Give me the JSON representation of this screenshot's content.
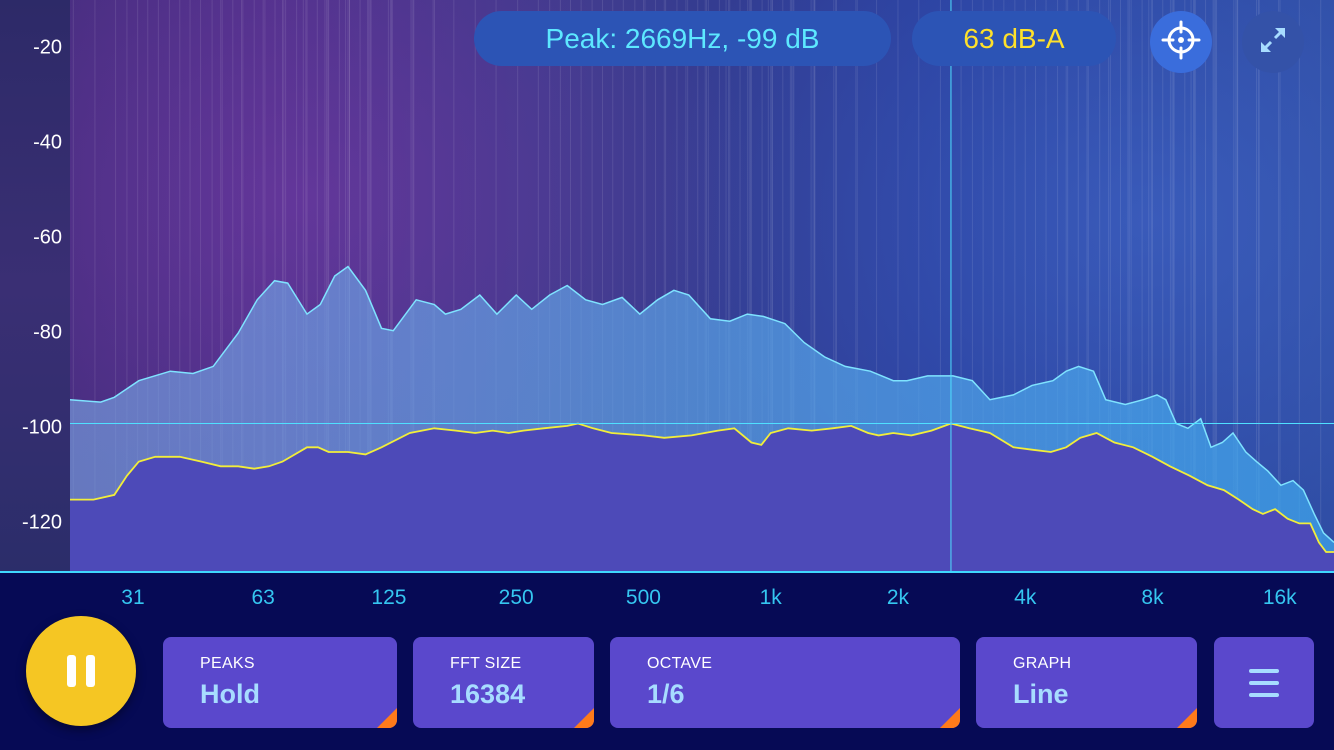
{
  "header": {
    "peak_readout": "Peak: 2669Hz, -99 dB",
    "level_readout": "63 dB-A"
  },
  "icons": {
    "target": "crosshair-target-icon",
    "expand": "expand-arrows-icon",
    "pause": "pause-icon",
    "menu": "hamburger-menu-icon"
  },
  "controls": {
    "peaks": {
      "label": "PEAKS",
      "value": "Hold"
    },
    "fft_size": {
      "label": "FFT SIZE",
      "value": "16384"
    },
    "octave": {
      "label": "OCTAVE",
      "value": "1/6"
    },
    "graph": {
      "label": "GRAPH",
      "value": "Line"
    }
  },
  "colors": {
    "peak_text": "#5de8ff",
    "level_text": "#ffe12a",
    "pause_button": "#f5c623",
    "card_bg": "#5a48cc",
    "card_corner": "#ff7a1a",
    "peak_hold_line": "#7fe3ff",
    "current_line": "#f2ee3a",
    "axis_tick_x": "#35c6f0"
  },
  "chart_data": {
    "type": "area",
    "x_scale": "log",
    "xlim": [
      22,
      21500
    ],
    "ylim": [
      -130,
      -10
    ],
    "y_ticks": [
      -20,
      -40,
      -60,
      -80,
      -100,
      -120
    ],
    "x_ticks": [
      {
        "hz": 31,
        "label": "31"
      },
      {
        "hz": 63,
        "label": "63"
      },
      {
        "hz": 125,
        "label": "125"
      },
      {
        "hz": 250,
        "label": "250"
      },
      {
        "hz": 500,
        "label": "500"
      },
      {
        "hz": 1000,
        "label": "1k"
      },
      {
        "hz": 2000,
        "label": "2k"
      },
      {
        "hz": 4000,
        "label": "4k"
      },
      {
        "hz": 8000,
        "label": "8k"
      },
      {
        "hz": 16000,
        "label": "16k"
      }
    ],
    "cursor": {
      "freq_hz": 2669,
      "db": -99
    },
    "series": [
      {
        "role": "peak-hold",
        "points": [
          [
            22,
            -94
          ],
          [
            26,
            -94.5
          ],
          [
            28,
            -93.5
          ],
          [
            32,
            -90
          ],
          [
            38,
            -88
          ],
          [
            43,
            -88.5
          ],
          [
            48,
            -87
          ],
          [
            55,
            -80
          ],
          [
            61,
            -73
          ],
          [
            67,
            -69
          ],
          [
            72,
            -69.5
          ],
          [
            80,
            -76
          ],
          [
            86,
            -74
          ],
          [
            93,
            -68
          ],
          [
            100,
            -66
          ],
          [
            110,
            -71
          ],
          [
            120,
            -79
          ],
          [
            128,
            -79.5
          ],
          [
            145,
            -73
          ],
          [
            160,
            -74
          ],
          [
            170,
            -76
          ],
          [
            185,
            -75
          ],
          [
            205,
            -72
          ],
          [
            225,
            -76
          ],
          [
            250,
            -72
          ],
          [
            272,
            -75
          ],
          [
            300,
            -72
          ],
          [
            330,
            -70
          ],
          [
            365,
            -73
          ],
          [
            400,
            -74
          ],
          [
            445,
            -72.5
          ],
          [
            490,
            -76
          ],
          [
            540,
            -73
          ],
          [
            590,
            -71
          ],
          [
            640,
            -72
          ],
          [
            720,
            -77
          ],
          [
            800,
            -77.5
          ],
          [
            880,
            -76
          ],
          [
            960,
            -76.5
          ],
          [
            1080,
            -78
          ],
          [
            1200,
            -82
          ],
          [
            1340,
            -85
          ],
          [
            1500,
            -87
          ],
          [
            1720,
            -88
          ],
          [
            1950,
            -90
          ],
          [
            2100,
            -90
          ],
          [
            2350,
            -89
          ],
          [
            2700,
            -89
          ],
          [
            3000,
            -90
          ],
          [
            3300,
            -94
          ],
          [
            3750,
            -93
          ],
          [
            4150,
            -91
          ],
          [
            4650,
            -90
          ],
          [
            5000,
            -88
          ],
          [
            5350,
            -87
          ],
          [
            5800,
            -88
          ],
          [
            6200,
            -94
          ],
          [
            6900,
            -95
          ],
          [
            7600,
            -94
          ],
          [
            8200,
            -93
          ],
          [
            8600,
            -94
          ],
          [
            9100,
            -99
          ],
          [
            9700,
            -100
          ],
          [
            10400,
            -98
          ],
          [
            11000,
            -104
          ],
          [
            11700,
            -103
          ],
          [
            12400,
            -101
          ],
          [
            13300,
            -105
          ],
          [
            14100,
            -107
          ],
          [
            15000,
            -109
          ],
          [
            16100,
            -112
          ],
          [
            17200,
            -111
          ],
          [
            18200,
            -113
          ],
          [
            19300,
            -118
          ],
          [
            20300,
            -122
          ],
          [
            21500,
            -124
          ]
        ]
      },
      {
        "role": "current",
        "points": [
          [
            22,
            -115
          ],
          [
            25,
            -115
          ],
          [
            28,
            -114
          ],
          [
            30,
            -110
          ],
          [
            32,
            -107
          ],
          [
            35,
            -106
          ],
          [
            40,
            -106
          ],
          [
            45,
            -107
          ],
          [
            50,
            -108
          ],
          [
            55,
            -108
          ],
          [
            60,
            -108.5
          ],
          [
            65,
            -108
          ],
          [
            70,
            -107
          ],
          [
            80,
            -104
          ],
          [
            85,
            -104
          ],
          [
            90,
            -105
          ],
          [
            100,
            -105
          ],
          [
            110,
            -105.5
          ],
          [
            120,
            -104
          ],
          [
            140,
            -101
          ],
          [
            160,
            -100
          ],
          [
            180,
            -100.5
          ],
          [
            200,
            -101
          ],
          [
            220,
            -100.5
          ],
          [
            240,
            -101
          ],
          [
            260,
            -100.5
          ],
          [
            290,
            -100
          ],
          [
            330,
            -99.5
          ],
          [
            350,
            -99
          ],
          [
            380,
            -100
          ],
          [
            420,
            -101
          ],
          [
            500,
            -101.5
          ],
          [
            560,
            -102
          ],
          [
            650,
            -101.5
          ],
          [
            750,
            -100.5
          ],
          [
            820,
            -100
          ],
          [
            900,
            -103
          ],
          [
            950,
            -103.5
          ],
          [
            1000,
            -101
          ],
          [
            1100,
            -100
          ],
          [
            1250,
            -100.5
          ],
          [
            1400,
            -100
          ],
          [
            1550,
            -99.5
          ],
          [
            1700,
            -101
          ],
          [
            1800,
            -101.5
          ],
          [
            1950,
            -101
          ],
          [
            2150,
            -101.5
          ],
          [
            2400,
            -100.5
          ],
          [
            2669,
            -99
          ],
          [
            2950,
            -100
          ],
          [
            3300,
            -101
          ],
          [
            3750,
            -104
          ],
          [
            4150,
            -104.5
          ],
          [
            4600,
            -105
          ],
          [
            5000,
            -104
          ],
          [
            5400,
            -102
          ],
          [
            5900,
            -101
          ],
          [
            6500,
            -103
          ],
          [
            7200,
            -104
          ],
          [
            8000,
            -106
          ],
          [
            8800,
            -108
          ],
          [
            9800,
            -110
          ],
          [
            10800,
            -112
          ],
          [
            11800,
            -113
          ],
          [
            12800,
            -115
          ],
          [
            13800,
            -117
          ],
          [
            14600,
            -118
          ],
          [
            15600,
            -117
          ],
          [
            16700,
            -119
          ],
          [
            17800,
            -120
          ],
          [
            18900,
            -120
          ],
          [
            19800,
            -124
          ],
          [
            20600,
            -126
          ],
          [
            21500,
            -126
          ]
        ]
      }
    ]
  }
}
